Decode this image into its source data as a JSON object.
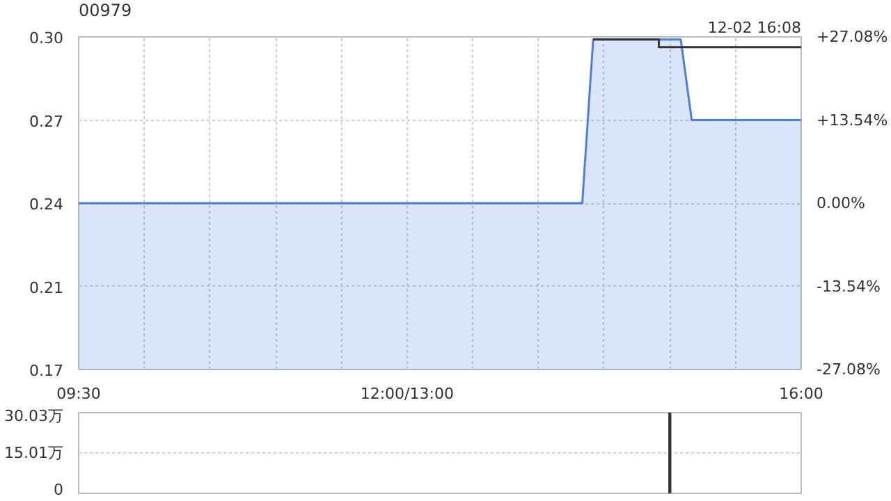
{
  "chart_data": [
    {
      "type": "area",
      "title": "00979",
      "subtitle": "12-02 16:08",
      "categories": [
        "09:30",
        null,
        null,
        null,
        null,
        null,
        null,
        null,
        null,
        null,
        null,
        null,
        null,
        null,
        null,
        null,
        null,
        null,
        null,
        null,
        null,
        null,
        null,
        null,
        null,
        null,
        null,
        null,
        null,
        null,
        "12:00/13:00",
        null,
        null,
        null,
        null,
        null,
        null,
        null,
        null,
        null,
        null,
        null,
        null,
        null,
        null,
        null,
        null,
        null,
        null,
        null,
        null,
        null,
        null,
        null,
        null,
        null,
        null,
        null,
        null,
        null,
        null,
        null,
        null,
        null,
        null,
        null,
        "16:00"
      ],
      "ylim": [
        0.175,
        0.305
      ],
      "yticks": [
        {
          "value": 0.175,
          "label": "0.17"
        },
        {
          "value": 0.2075,
          "label": "0.21"
        },
        {
          "value": 0.24,
          "label": "0.24"
        },
        {
          "value": 0.2725,
          "label": "0.27"
        },
        {
          "value": 0.305,
          "label": "0.30"
        }
      ],
      "y2lim": [
        -27.08,
        27.08
      ],
      "y2ticks": [
        {
          "value": -27.08,
          "label": "-27.08%"
        },
        {
          "value": -13.54,
          "label": "-13.54%"
        },
        {
          "value": 0,
          "label": "0.00%"
        },
        {
          "value": 13.54,
          "label": "+13.54%"
        },
        {
          "value": 27.08,
          "label": "+27.08%"
        }
      ],
      "grid": true,
      "series": [
        {
          "type": "area",
          "color": "#4a7fe0",
          "values": [
            0.24,
            0.24,
            0.24,
            0.24,
            0.24,
            0.24,
            0.24,
            0.24,
            0.24,
            0.24,
            0.24,
            0.24,
            0.24,
            0.24,
            0.24,
            0.24,
            0.24,
            0.24,
            0.24,
            0.24,
            0.24,
            0.24,
            0.24,
            0.24,
            0.24,
            0.24,
            0.24,
            0.24,
            0.24,
            0.24,
            0.24,
            0.24,
            0.24,
            0.24,
            0.24,
            0.24,
            0.24,
            0.24,
            0.24,
            0.24,
            0.24,
            0.24,
            0.24,
            0.24,
            0.24,
            0.24,
            0.24,
            0.304,
            0.304,
            0.304,
            0.304,
            0.304,
            0.304,
            0.304,
            0.304,
            0.304,
            0.2725,
            0.2725,
            0.2725,
            0.2725,
            0.2725,
            0.2725,
            0.2725,
            0.2725,
            0.2725,
            0.2725,
            0.2725
          ]
        },
        {
          "type": "step",
          "color": "#333333",
          "values": [
            null,
            null,
            null,
            null,
            null,
            null,
            null,
            null,
            null,
            null,
            null,
            null,
            null,
            null,
            null,
            null,
            null,
            null,
            null,
            null,
            null,
            null,
            null,
            null,
            null,
            null,
            null,
            null,
            null,
            null,
            null,
            null,
            null,
            null,
            null,
            null,
            null,
            null,
            null,
            null,
            null,
            null,
            null,
            null,
            null,
            null,
            null,
            0.304,
            0.304,
            0.304,
            0.304,
            0.304,
            0.304,
            0.301,
            0.301,
            0.301,
            0.301,
            0.301,
            0.301,
            0.301,
            0.301,
            0.301,
            0.301,
            0.301,
            0.301,
            0.301,
            0.301
          ]
        }
      ]
    },
    {
      "type": "bar",
      "categories": [
        null,
        null,
        null,
        null,
        null,
        null,
        null,
        null,
        null,
        null,
        null,
        null,
        null,
        null,
        null,
        null,
        null,
        null,
        null,
        null,
        null,
        null,
        null,
        null,
        null,
        null,
        null,
        null,
        null,
        null,
        null,
        null,
        null,
        null,
        null,
        null,
        null,
        null,
        null,
        null,
        null,
        null,
        null,
        null,
        null,
        null,
        null,
        null,
        null,
        null,
        null,
        null,
        null,
        null,
        null,
        null,
        null,
        null,
        null,
        null,
        null,
        null,
        null,
        null,
        null,
        null,
        null
      ],
      "values": [
        null,
        null,
        null,
        null,
        null,
        null,
        null,
        null,
        null,
        null,
        null,
        null,
        null,
        null,
        null,
        null,
        null,
        null,
        null,
        null,
        null,
        null,
        null,
        null,
        null,
        null,
        null,
        null,
        null,
        null,
        null,
        null,
        null,
        null,
        null,
        null,
        null,
        null,
        null,
        null,
        null,
        null,
        null,
        null,
        null,
        null,
        null,
        null,
        null,
        null,
        null,
        null,
        null,
        null,
        30,
        null,
        null,
        null,
        null,
        null,
        null,
        null,
        null,
        null,
        null,
        null,
        null
      ],
      "color": "#333333",
      "ylim": [
        0,
        30.03
      ],
      "yticks": [
        0,
        {
          "value": 15.01,
          "label": "15.01万"
        },
        {
          "value": 30.03,
          "label": "30.03万"
        }
      ],
      "grid": "y"
    }
  ]
}
